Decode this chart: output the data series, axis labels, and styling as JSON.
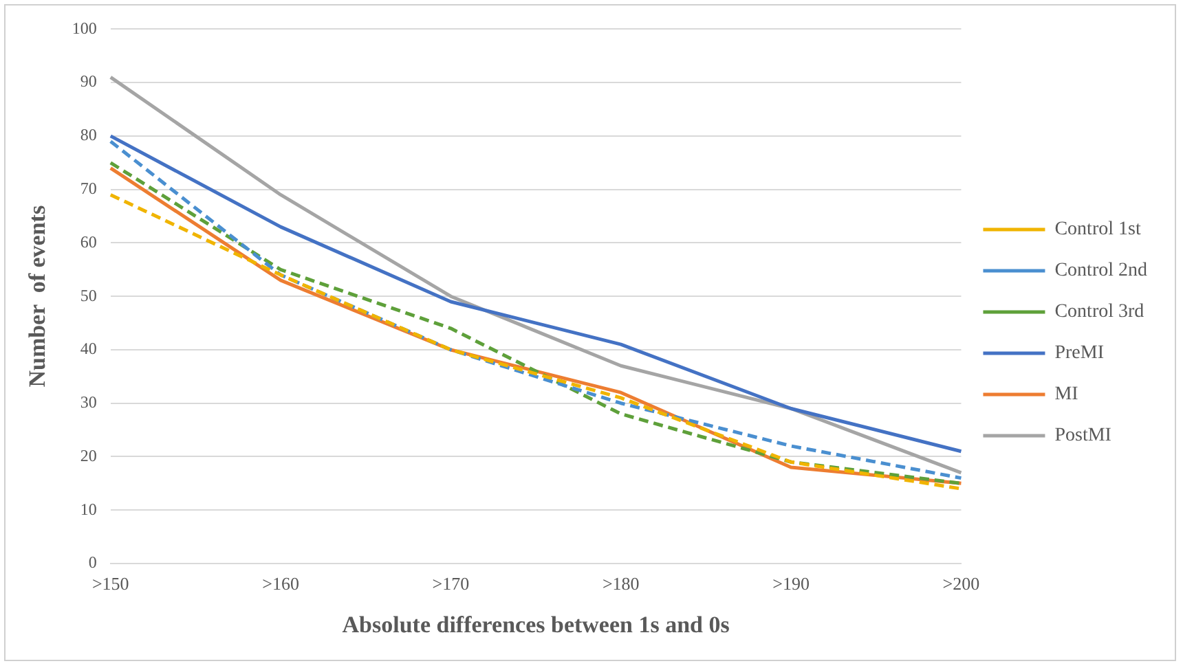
{
  "chart_data": {
    "type": "line",
    "xlabel": "Absolute differences between 1s and 0s",
    "ylabel": "Number  of events",
    "categories": [
      ">150",
      ">160",
      ">170",
      ">180",
      ">190",
      ">200"
    ],
    "series": [
      {
        "name": "Control 1st",
        "color": "#f0b400",
        "line_style": "dashed",
        "values": [
          69,
          54,
          40,
          31,
          19,
          14
        ]
      },
      {
        "name": "Control 2nd",
        "color": "#4a8fd0",
        "line_style": "dashed",
        "values": [
          79,
          54,
          40,
          30,
          22,
          16
        ]
      },
      {
        "name": "Control 3rd",
        "color": "#5ea03a",
        "line_style": "dashed",
        "values": [
          75,
          55,
          44,
          28,
          19,
          15
        ]
      },
      {
        "name": "PreMI",
        "color": "#4472c4",
        "line_style": "solid",
        "values": [
          80,
          63,
          49,
          41,
          29,
          21
        ]
      },
      {
        "name": "MI",
        "color": "#ed7d31",
        "line_style": "solid",
        "values": [
          74,
          53,
          40,
          32,
          18,
          15
        ]
      },
      {
        "name": "PostMI",
        "color": "#a5a5a5",
        "line_style": "solid",
        "values": [
          91,
          69,
          50,
          37,
          29,
          17
        ]
      }
    ],
    "ylim": [
      0,
      100
    ],
    "yticks": [
      0,
      10,
      20,
      30,
      40,
      50,
      60,
      70,
      80,
      90,
      100
    ],
    "grid": "y",
    "legend": "right",
    "marker": "none"
  }
}
